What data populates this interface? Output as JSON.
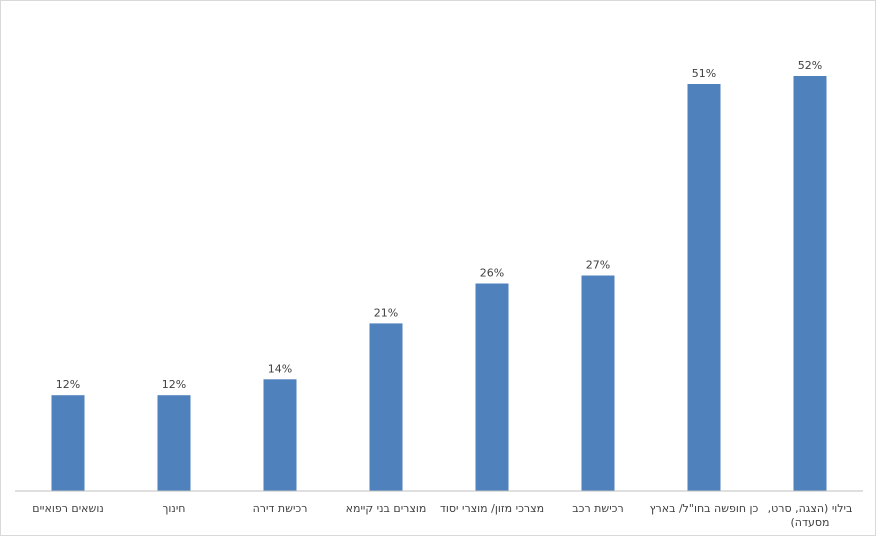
{
  "chart_data": {
    "type": "bar",
    "title": "",
    "xlabel": "",
    "ylabel": "",
    "ylim": [
      0,
      55
    ],
    "grid": false,
    "categories": [
      "נושאים רפואיים",
      "חינוך",
      "רכישת דירה",
      "מוצרים בני קיימא",
      "מצרכי מזון/ מוצרי יסוד",
      "רכישת רכב",
      "כן חופשה בחו\"ל/ בארץ",
      "בילוי (הצגה, סרט, מסעדה)"
    ],
    "values": [
      12,
      12,
      14,
      21,
      26,
      27,
      51,
      52
    ],
    "data_labels": [
      "12%",
      "12%",
      "14%",
      "21%",
      "26%",
      "27%",
      "51%",
      "52%"
    ],
    "bar_color": "#4f81bd"
  }
}
